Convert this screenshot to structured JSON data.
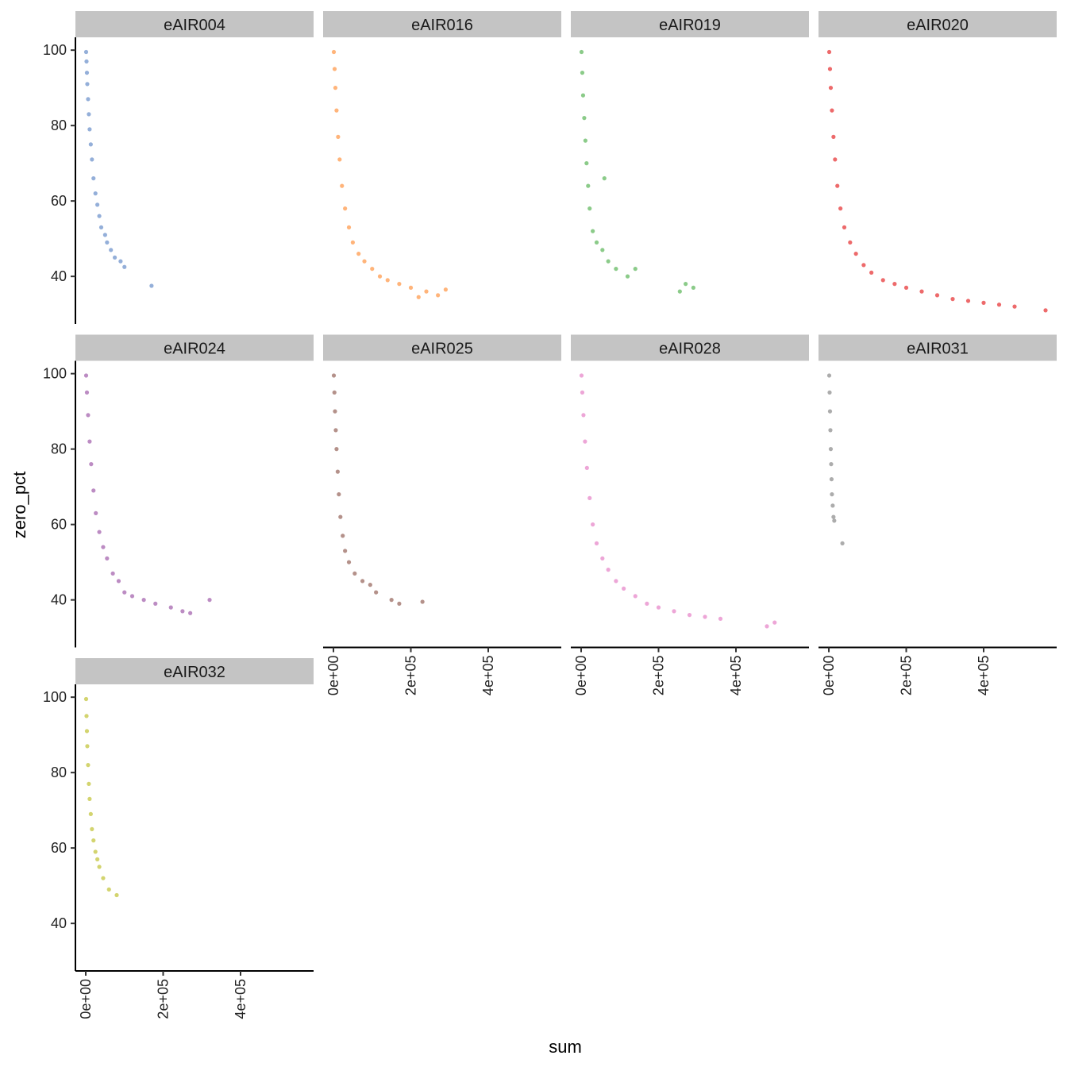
{
  "chart_data": [
    {
      "type": "scatter",
      "title": "eAIR004",
      "color": "#5b84c4",
      "ylabel": "zero_pct",
      "x": [
        1000,
        2000,
        3000,
        4000,
        6000,
        8000,
        10000,
        13000,
        16000,
        20000,
        25000,
        30000,
        35000,
        40000,
        50000,
        55000,
        65000,
        75000,
        90000,
        100000,
        170000
      ],
      "values": [
        99.5,
        97,
        94,
        91,
        87,
        83,
        79,
        75,
        71,
        66,
        62,
        59,
        56,
        53,
        51,
        49,
        47,
        45,
        44,
        42.5,
        37.5
      ],
      "xlim": [
        -26700,
        588700
      ],
      "ylim": [
        27.4,
        103.4
      ],
      "yticks": [
        40,
        60,
        80,
        100
      ]
    },
    {
      "type": "scatter",
      "title": "eAIR016",
      "color": "#ff8c33",
      "x": [
        1000,
        3000,
        5000,
        8000,
        12000,
        16000,
        22000,
        30000,
        40000,
        50000,
        65000,
        80000,
        100000,
        120000,
        140000,
        170000,
        200000,
        240000,
        270000,
        290000,
        220000
      ],
      "values": [
        99.5,
        95,
        90,
        84,
        77,
        71,
        64,
        58,
        53,
        49,
        46,
        44,
        42,
        40,
        39,
        38,
        37,
        36,
        35,
        36.5,
        34.5
      ],
      "xlim": [
        -26700,
        588700
      ],
      "ylim": [
        27.4,
        103.4
      ]
    },
    {
      "type": "scatter",
      "title": "eAIR019",
      "color": "#4daf4a",
      "x": [
        1000,
        3000,
        5000,
        8000,
        11000,
        14000,
        18000,
        22000,
        30000,
        40000,
        55000,
        70000,
        90000,
        120000,
        140000,
        60000,
        255000,
        270000,
        290000
      ],
      "values": [
        99.5,
        94,
        88,
        82,
        76,
        70,
        64,
        58,
        52,
        49,
        47,
        44,
        42,
        40,
        42,
        66,
        36,
        38,
        37
      ],
      "xlim": [
        -26700,
        588700
      ],
      "ylim": [
        27.4,
        103.4
      ]
    },
    {
      "type": "scatter",
      "title": "eAIR020",
      "color": "#e41a1c",
      "x": [
        1000,
        3000,
        5000,
        8000,
        12000,
        16000,
        22000,
        30000,
        40000,
        55000,
        70000,
        90000,
        110000,
        140000,
        170000,
        200000,
        240000,
        280000,
        320000,
        360000,
        400000,
        440000,
        480000,
        560000
      ],
      "values": [
        99.5,
        95,
        90,
        84,
        77,
        71,
        64,
        58,
        53,
        49,
        46,
        43,
        41,
        39,
        38,
        37,
        36,
        35,
        34,
        33.5,
        33,
        32.5,
        32,
        31
      ],
      "xlim": [
        -26700,
        588700
      ],
      "ylim": [
        27.4,
        103.4
      ]
    },
    {
      "type": "scatter",
      "title": "eAIR024",
      "color": "#984ea3",
      "x": [
        1000,
        3000,
        6000,
        10000,
        14000,
        20000,
        26000,
        35000,
        45000,
        55000,
        70000,
        85000,
        100000,
        120000,
        150000,
        180000,
        220000,
        250000,
        270000,
        320000
      ],
      "values": [
        99.5,
        95,
        89,
        82,
        76,
        69,
        63,
        58,
        54,
        51,
        47,
        45,
        42,
        41,
        40,
        39,
        38,
        37,
        36.5,
        40
      ],
      "xlim": [
        -26700,
        588700
      ],
      "ylim": [
        27.4,
        103.4
      ],
      "yticks": [
        40,
        60,
        80,
        100
      ]
    },
    {
      "type": "scatter",
      "title": "eAIR025",
      "color": "#8c564b",
      "x": [
        1000,
        2500,
        4000,
        6000,
        8000,
        11000,
        14000,
        18000,
        24000,
        30000,
        40000,
        55000,
        75000,
        95000,
        110000,
        150000,
        170000,
        230000
      ],
      "values": [
        99.5,
        95,
        90,
        85,
        80,
        74,
        68,
        62,
        57,
        53,
        50,
        47,
        45,
        44,
        42,
        40,
        39,
        39.5
      ],
      "xlim": [
        -26700,
        588700
      ],
      "ylim": [
        27.4,
        103.4
      ],
      "xticks": [
        {
          "value": 0,
          "label": "0e+00"
        },
        {
          "value": 200000,
          "label": "2e+05"
        },
        {
          "value": 400000,
          "label": "4e+05"
        }
      ]
    },
    {
      "type": "scatter",
      "title": "eAIR028",
      "color": "#e377c2",
      "x": [
        1000,
        3000,
        6000,
        10000,
        15000,
        22000,
        30000,
        40000,
        55000,
        70000,
        90000,
        110000,
        140000,
        170000,
        200000,
        240000,
        280000,
        320000,
        360000,
        480000,
        500000
      ],
      "values": [
        99.5,
        95,
        89,
        82,
        75,
        67,
        60,
        55,
        51,
        48,
        45,
        43,
        41,
        39,
        38,
        37,
        36,
        35.5,
        35,
        33,
        34
      ],
      "xlim": [
        -26700,
        588700
      ],
      "ylim": [
        27.4,
        103.4
      ],
      "xticks": [
        {
          "value": 0,
          "label": "0e+00"
        },
        {
          "value": 200000,
          "label": "2e+05"
        },
        {
          "value": 400000,
          "label": "4e+05"
        }
      ]
    },
    {
      "type": "scatter",
      "title": "eAIR031",
      "color": "#7f7f7f",
      "x": [
        1000,
        2000,
        3000,
        4000,
        5000,
        6000,
        7000,
        8000,
        10000,
        12000,
        14000,
        35000
      ],
      "values": [
        99.5,
        95,
        90,
        85,
        80,
        76,
        72,
        68,
        65,
        62,
        61,
        55
      ],
      "xlim": [
        -26700,
        588700
      ],
      "ylim": [
        27.4,
        103.4
      ],
      "xticks": [
        {
          "value": 0,
          "label": "0e+00"
        },
        {
          "value": 200000,
          "label": "2e+05"
        },
        {
          "value": 400000,
          "label": "4e+05"
        }
      ]
    },
    {
      "type": "scatter",
      "title": "eAIR032",
      "color": "#bcbd22",
      "xlabel": "sum",
      "x": [
        1000,
        2000,
        3000,
        4000,
        6000,
        8000,
        10000,
        13000,
        16000,
        20000,
        25000,
        30000,
        35000,
        45000,
        60000,
        80000
      ],
      "values": [
        99.5,
        95,
        91,
        87,
        82,
        77,
        73,
        69,
        65,
        62,
        59,
        57,
        55,
        52,
        49,
        47.5
      ],
      "xlim": [
        -26700,
        588700
      ],
      "ylim": [
        27.4,
        103.4
      ],
      "yticks": [
        40,
        60,
        80,
        100
      ],
      "xticks": [
        {
          "value": 0,
          "label": "0e+00"
        },
        {
          "value": 200000,
          "label": "2e+05"
        },
        {
          "value": 400000,
          "label": "4e+05"
        }
      ]
    }
  ]
}
